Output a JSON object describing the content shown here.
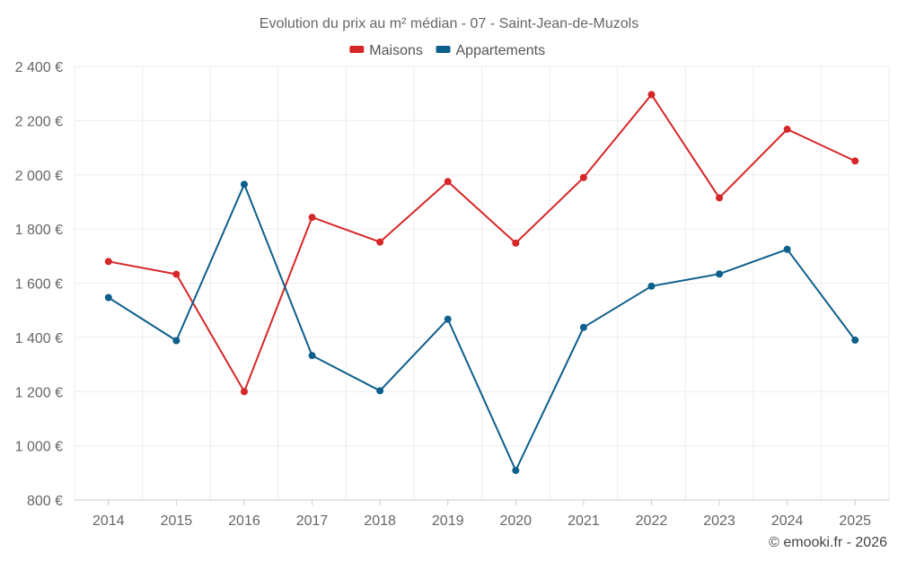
{
  "chart_data": {
    "type": "line",
    "title": "Evolution du prix au m² médian - 07 - Saint-Jean-de-Muzols",
    "categories": [
      "2014",
      "2015",
      "2016",
      "2017",
      "2018",
      "2019",
      "2020",
      "2021",
      "2022",
      "2023",
      "2024",
      "2025"
    ],
    "series": [
      {
        "name": "Maisons",
        "color": "#d62728",
        "values": [
          1680,
          1633,
          1200,
          1843,
          1752,
          1975,
          1748,
          1990,
          2296,
          1915,
          2168,
          2051
        ]
      },
      {
        "name": "Appartements",
        "color": "#0d5f8c",
        "values": [
          1547,
          1388,
          1965,
          1333,
          1203,
          1467,
          909,
          1437,
          1589,
          1634,
          1725,
          1390
        ]
      }
    ],
    "ylim": [
      800,
      2400
    ],
    "yticks": [
      800,
      1000,
      1200,
      1400,
      1600,
      1800,
      2000,
      2200,
      2400
    ],
    "ytick_labels": [
      "800 €",
      "1 000 €",
      "1 200 €",
      "1 400 €",
      "1 600 €",
      "1 800 €",
      "2 000 €",
      "2 200 €",
      "2 400 €"
    ],
    "xlabel": "",
    "ylabel": "",
    "legend_position": "top-center",
    "grid": true
  },
  "credit": "© emooki.fr - 2026"
}
